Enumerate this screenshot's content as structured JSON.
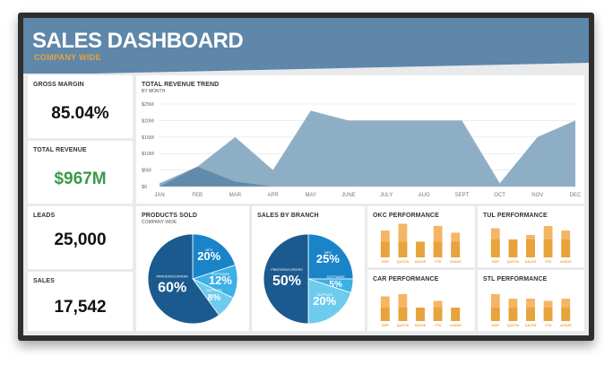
{
  "header": {
    "title": "SALES DASHBOARD",
    "subtitle": "COMPANY WIDE"
  },
  "kpis": {
    "gross_margin": {
      "label": "GROSS MARGIN",
      "value": "85.04%"
    },
    "total_revenue": {
      "label": "TOTAL REVENUE",
      "value": "$967M"
    },
    "leads": {
      "label": "LEADS",
      "value": "25,000"
    },
    "sales": {
      "label": "SALES",
      "value": "17,542"
    }
  },
  "colors": {
    "header": "#5e87a9",
    "orange": "#e8a33d",
    "orange_light": "#f4b665",
    "green": "#3a9a48",
    "blue_dark": "#1b5a8f",
    "blue_mid": "#1a84c9",
    "blue_light": "#3db0e6",
    "blue_pale": "#6ecbee",
    "area_light": "#8eaec6",
    "area_dark": "#5d86a6"
  },
  "chart_data": [
    {
      "type": "area",
      "title": "TOTAL REVENUE TREND",
      "subtitle": "BY MONTH",
      "categories": [
        "JAN",
        "FEB",
        "MAR",
        "APR",
        "MAY",
        "JUNE",
        "JULY",
        "AUG",
        "SEPT",
        "OCT",
        "NOV",
        "DEC"
      ],
      "yticks": [
        "$0",
        "$5M",
        "$10M",
        "$15M",
        "$20M",
        "$25M"
      ],
      "ylim": [
        0,
        25
      ],
      "series": [
        {
          "values": [
            1,
            6,
            15,
            5,
            23,
            20,
            20,
            20,
            20,
            1,
            15,
            20
          ]
        },
        {
          "values": [
            0,
            6,
            1.5,
            0,
            null,
            null,
            null,
            null,
            null,
            null,
            null,
            null
          ]
        }
      ]
    },
    {
      "type": "pie",
      "title": "PRODUCTS SOLD",
      "subtitle": "COMPANY WIDE",
      "slices": [
        {
          "name": "MPS",
          "value": 20
        },
        {
          "name": "SOFTWARE",
          "value": 12
        },
        {
          "name": "SUPPLIES",
          "value": 8
        },
        {
          "name": "PRINTERS/COPIERS",
          "value": 60
        }
      ]
    },
    {
      "type": "pie",
      "title": "SALES BY BRANCH",
      "slices": [
        {
          "name": "MPS",
          "value": 25
        },
        {
          "name": "SOFTWARE",
          "value": 5
        },
        {
          "name": "SUPPLIES",
          "value": 20
        },
        {
          "name": "PRINTERS/COPIERS",
          "value": 50
        }
      ]
    },
    {
      "type": "bar",
      "title": "OKC PERFORMANCE",
      "categories": [
        "GDP",
        "QUOTA",
        "SALES",
        "YTD",
        "LEADS"
      ],
      "series": [
        {
          "values": [
            6,
            7.5,
            3.5,
            7,
            5.5
          ]
        },
        {
          "values": [
            3.5,
            3.5,
            3.5,
            3.5,
            3.5
          ]
        }
      ]
    },
    {
      "type": "bar",
      "title": "TUL PERFORMANCE",
      "categories": [
        "GDP",
        "QUOTA",
        "SALES",
        "YTD",
        "LEADS"
      ],
      "series": [
        {
          "values": [
            6.5,
            4,
            5,
            7,
            6
          ]
        },
        {
          "values": [
            4,
            4,
            4,
            4,
            4
          ]
        }
      ]
    },
    {
      "type": "bar",
      "title": "CAR PERFORMANCE",
      "categories": [
        "GDP",
        "QUOTA",
        "SALES",
        "YTD",
        "LEADS"
      ],
      "series": [
        {
          "values": [
            5.5,
            6,
            3,
            4.5,
            3
          ]
        },
        {
          "values": [
            3,
            3,
            3,
            3,
            3
          ]
        }
      ]
    },
    {
      "type": "bar",
      "title": "STL PERFORMANCE",
      "categories": [
        "GDP",
        "QUOTA",
        "SALES",
        "YTD",
        "LEADS"
      ],
      "series": [
        {
          "values": [
            6,
            5,
            5,
            4.5,
            5
          ]
        },
        {
          "values": [
            3,
            3,
            3,
            3,
            3
          ]
        }
      ]
    }
  ]
}
